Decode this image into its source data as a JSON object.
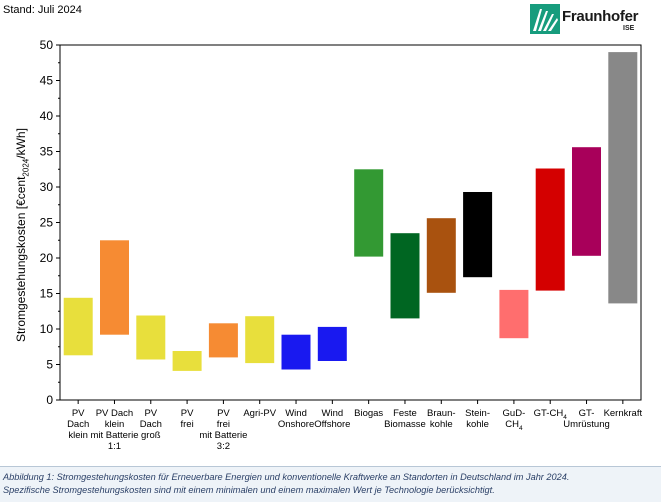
{
  "header": {
    "stand": "Stand: Juli 2024"
  },
  "logo": {
    "name": "Fraunhofer",
    "sub": "ISE"
  },
  "caption": {
    "line1": "Abbildung 1: Stromgestehungskosten für Erneuerbare Energien und konventionelle Kraftwerke an Standorten in Deutschland im Jahr 2024.",
    "line2": "Spezifische Stromgestehungskosten sind mit einem minimalen und einem maximalen Wert je Technologie berücksichtigt."
  },
  "chart_data": {
    "type": "bar",
    "ylabel_parts": [
      "Stromgestehungskosten [€cent",
      "2024",
      "/kWh]"
    ],
    "ylim": [
      0,
      50
    ],
    "yticks": [
      0,
      5,
      10,
      15,
      20,
      25,
      30,
      35,
      40,
      45,
      50
    ],
    "categories": [
      {
        "label": [
          "PV",
          "Dach",
          "klein"
        ],
        "min": 6.3,
        "max": 14.4,
        "color": "#e8df3c"
      },
      {
        "label": [
          "PV Dach",
          "klein",
          "mit Batterie",
          "1:1"
        ],
        "min": 9.2,
        "max": 22.5,
        "color": "#f68b33"
      },
      {
        "label": [
          "PV",
          "Dach",
          "groß"
        ],
        "min": 5.7,
        "max": 11.9,
        "color": "#e8df3c"
      },
      {
        "label": [
          "PV",
          "frei"
        ],
        "min": 4.1,
        "max": 6.9,
        "color": "#e8df3c"
      },
      {
        "label": [
          "PV",
          "frei",
          "mit Batterie",
          "3:2"
        ],
        "min": 6.0,
        "max": 10.8,
        "color": "#f68b33"
      },
      {
        "label": [
          "Agri-PV"
        ],
        "min": 5.2,
        "max": 11.8,
        "color": "#e8df3c"
      },
      {
        "label": [
          "Wind",
          "Onshore"
        ],
        "min": 4.3,
        "max": 9.2,
        "color": "#1919f0"
      },
      {
        "label": [
          "Wind",
          "Offshore"
        ],
        "min": 5.5,
        "max": 10.3,
        "color": "#1919f0"
      },
      {
        "label": [
          "Biogas"
        ],
        "min": 20.2,
        "max": 32.5,
        "color": "#339933"
      },
      {
        "label": [
          "Feste",
          "Biomasse"
        ],
        "min": 11.5,
        "max": 23.5,
        "color": "#006622"
      },
      {
        "label": [
          "Braun-",
          "kohle"
        ],
        "min": 15.1,
        "max": 25.6,
        "color": "#a9520f"
      },
      {
        "label": [
          "Stein-",
          "kohle"
        ],
        "min": 17.3,
        "max": 29.3,
        "color": "#000000"
      },
      {
        "label": [
          "GuD-",
          "CH4"
        ],
        "min": 8.7,
        "max": 15.5,
        "color": "#ff6e6e"
      },
      {
        "label": [
          "GT-CH4"
        ],
        "min": 15.4,
        "max": 32.6,
        "color": "#d40000"
      },
      {
        "label": [
          "GT-",
          "Umrüstung"
        ],
        "min": 20.3,
        "max": 35.6,
        "color": "#a8005a"
      },
      {
        "label": [
          "Kernkraft"
        ],
        "min": 13.6,
        "max": 49.0,
        "color": "#888888"
      }
    ]
  }
}
